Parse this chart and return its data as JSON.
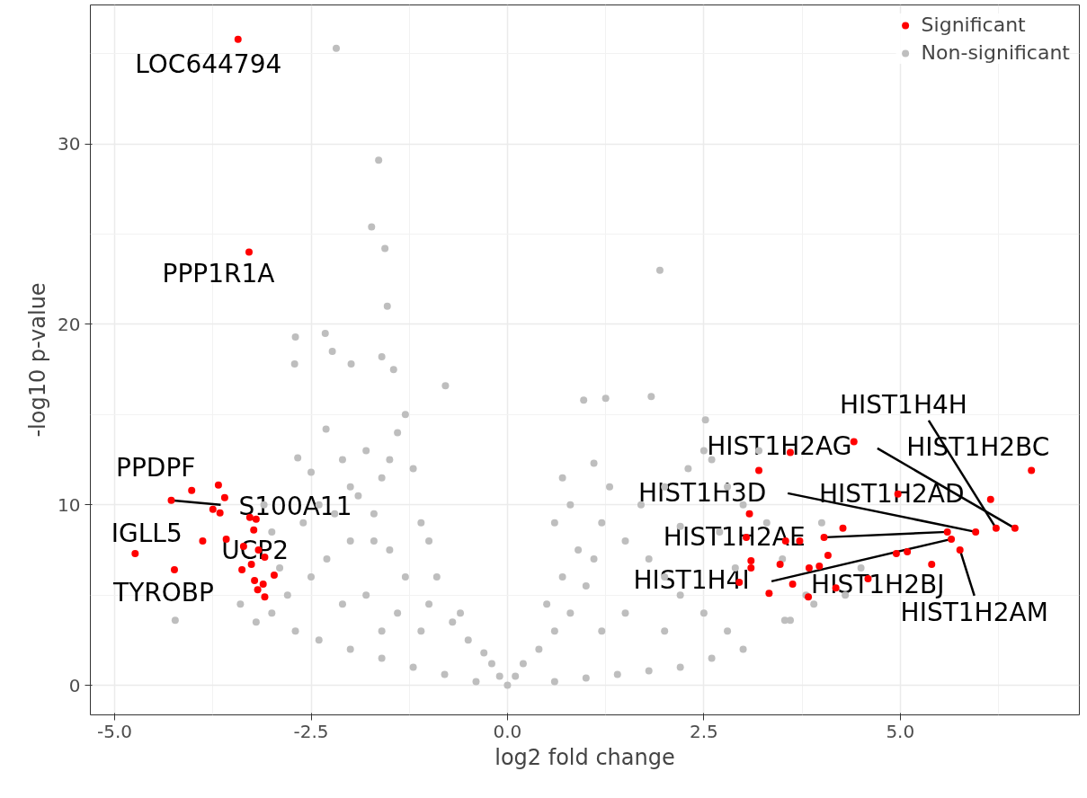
{
  "chart_data": {
    "type": "scatter",
    "xlabel": "log2 fold change",
    "ylabel": "-log10 p-value",
    "xlim": [
      -5.31,
      7.28
    ],
    "ylim": [
      -1.64,
      37.7
    ],
    "xticks": [
      {
        "value": -5,
        "label": "-5.0"
      },
      {
        "value": -2.5,
        "label": "-2.5"
      },
      {
        "value": 0,
        "label": "0.0"
      },
      {
        "value": 2.5,
        "label": "2.5"
      },
      {
        "value": 5,
        "label": "5.0"
      }
    ],
    "yticks": [
      0,
      10,
      20,
      30
    ],
    "grid": true,
    "legend": "top right",
    "marker": "circle",
    "series": [
      {
        "name": "Significant",
        "color": "#ff0000",
        "x": [
          -3.43,
          -3.29,
          -4.02,
          -4.28,
          -3.68,
          -3.75,
          -3.66,
          -3.6,
          -4.74,
          -3.88,
          -3.58,
          -3.28,
          -3.2,
          -3.23,
          -3.36,
          -3.17,
          -3.09,
          -2.97,
          -3.38,
          -3.26,
          -3.22,
          -3.18,
          -3.09,
          -3.11,
          -4.24,
          3.2,
          3.6,
          4.41,
          6.67,
          6.15,
          4.97,
          6.22,
          6.46,
          5.96,
          4.27,
          4.03,
          3.72,
          3.54,
          5.6,
          5.65,
          5.76,
          4.95,
          5.09,
          3.08,
          3.04,
          3.1,
          3.1,
          4.08,
          3.97,
          3.47,
          3.63,
          3.33,
          3.84,
          4.18,
          3.83,
          4.59,
          5.4,
          2.95
        ],
        "values": [
          35.8,
          24.0,
          10.8,
          10.25,
          11.1,
          9.75,
          9.55,
          10.4,
          7.3,
          8.0,
          8.1,
          9.3,
          9.2,
          8.6,
          7.7,
          7.5,
          7.1,
          6.1,
          6.4,
          6.7,
          5.8,
          5.3,
          4.9,
          5.6,
          6.4,
          11.9,
          12.9,
          13.5,
          11.9,
          10.3,
          10.6,
          8.7,
          8.7,
          8.5,
          8.7,
          8.2,
          8.0,
          8.0,
          8.5,
          8.1,
          7.5,
          7.3,
          7.4,
          9.5,
          8.2,
          6.9,
          6.5,
          7.2,
          6.6,
          6.7,
          5.6,
          5.1,
          6.5,
          5.4,
          4.9,
          5.9,
          6.7,
          5.7
        ]
      },
      {
        "name": "Non-significant",
        "color": "#bebebe",
        "x": [
          -2.18,
          -1.64,
          -1.73,
          -1.56,
          -1.53,
          1.94,
          -2.7,
          -2.71,
          -2.32,
          -2.23,
          -1.99,
          -1.6,
          -1.45,
          -0.79,
          1.83,
          1.25,
          0.97,
          2.52,
          -2.31,
          -2.67,
          -4.23,
          3.53,
          3.6,
          0,
          -0.1,
          -0.2,
          -0.3,
          -0.5,
          -0.7,
          -1,
          -1.3,
          -1.5,
          -1.7,
          -2,
          -2.3,
          -2.5,
          -2.8,
          -3,
          -2.7,
          -2.4,
          -2,
          -1.6,
          -1.2,
          -0.8,
          -0.4,
          -1.4,
          -1.8,
          -2.1,
          -1.1,
          -1.6,
          -2.2,
          -1.9,
          -1.6,
          -1.5,
          -1.4,
          -1.2,
          -1.8,
          -2,
          -2.4,
          -2.6,
          -3,
          -2.9,
          -3.2,
          -3.4,
          -2.5,
          -1.1,
          -1,
          -0.9,
          -0.6,
          -1.3,
          -1.7,
          -2.1,
          -3.1,
          0.1,
          0.2,
          0.4,
          0.6,
          0.8,
          1,
          1.1,
          0.9,
          0.7,
          0.5,
          0.6,
          0.8,
          1.2,
          1.5,
          1.8,
          2,
          2.2,
          2.5,
          2.8,
          3,
          2.6,
          2.2,
          1.8,
          1.4,
          1,
          0.6,
          1.5,
          2,
          1.2,
          1.7,
          2,
          1.3,
          2.3,
          2.5,
          2.8,
          3,
          3.3,
          3.5,
          3.8,
          3.9,
          4.3,
          4.5,
          4,
          3.2,
          2.6,
          1.1,
          0.7,
          2.9,
          2.7,
          2.2
        ],
        "values": [
          35.3,
          29.1,
          25.4,
          24.2,
          21.0,
          23.0,
          19.3,
          17.8,
          19.5,
          18.5,
          17.8,
          18.2,
          17.5,
          16.6,
          16.0,
          15.9,
          15.8,
          14.7,
          14.2,
          12.6,
          3.6,
          3.6,
          3.6,
          0,
          0.5,
          1.2,
          1.8,
          2.5,
          3.5,
          4.5,
          6,
          7.5,
          8,
          8,
          7,
          6,
          5,
          4,
          3,
          2.5,
          2,
          1.5,
          1,
          0.6,
          0.2,
          4,
          5,
          4.5,
          3,
          3,
          9.5,
          10.5,
          11.5,
          12.5,
          14,
          12,
          13,
          11,
          10,
          9,
          8.5,
          6.5,
          3.5,
          4.5,
          11.8,
          9,
          8,
          6,
          4,
          15,
          9.5,
          12.5,
          10,
          0.5,
          1.2,
          2,
          3,
          4,
          5.5,
          7,
          7.5,
          6,
          4.5,
          9,
          10,
          9,
          8,
          7,
          6,
          5,
          4,
          3,
          2,
          1.5,
          1,
          0.8,
          0.6,
          0.4,
          0.2,
          4,
          3,
          3,
          10,
          11,
          11,
          12,
          13,
          11,
          10,
          9,
          7,
          5,
          4.5,
          5,
          6.5,
          9,
          13,
          12.5,
          12.3,
          11.5,
          6.5,
          8.5,
          8.8
        ]
      }
    ],
    "annotations": [
      {
        "text": "LOC644794",
        "x": -3.43,
        "y": 35.8
      },
      {
        "text": "PPP1R1A",
        "x": -3.29,
        "y": 24.0
      },
      {
        "text": "PPDPF",
        "x": -4.02,
        "y": 10.8
      },
      {
        "text": "S100A11",
        "x": -4.28,
        "y": 10.25
      },
      {
        "text": "IGLL5",
        "x": -4.74,
        "y": 7.3
      },
      {
        "text": "UCP2",
        "x": -3.58,
        "y": 8.1
      },
      {
        "text": "TYROBP",
        "x": -4.24,
        "y": 6.4
      },
      {
        "text": "HIST1H4H",
        "x": 6.22,
        "y": 8.7
      },
      {
        "text": "HIST1H2AG",
        "x": 6.46,
        "y": 8.7
      },
      {
        "text": "HIST1H2BC",
        "x": 6.15,
        "y": 10.3
      },
      {
        "text": "HIST1H3D",
        "x": 5.96,
        "y": 8.5
      },
      {
        "text": "HIST1H2AD",
        "x": 4.97,
        "y": 10.6
      },
      {
        "text": "HIST1H2AE",
        "x": 5.6,
        "y": 8.5
      },
      {
        "text": "HIST1H4I",
        "x": 5.65,
        "y": 8.1
      },
      {
        "text": "HIST1H2BJ",
        "x": 5.4,
        "y": 6.7
      },
      {
        "text": "HIST1H2AM",
        "x": 5.76,
        "y": 7.5
      }
    ]
  }
}
